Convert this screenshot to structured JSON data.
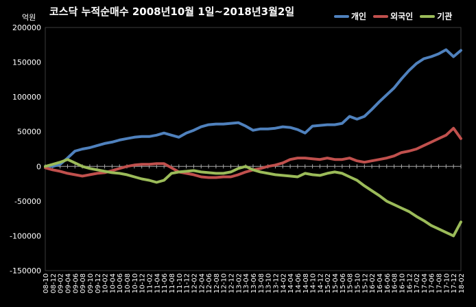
{
  "chart_data": {
    "type": "line",
    "title": "코스닥 누적순매수 2008년10월 1일~2018년3월2일",
    "unit_label": "억원",
    "ylim": [
      -150000,
      200000
    ],
    "yticks": [
      200000,
      150000,
      100000,
      50000,
      0,
      -50000,
      -100000,
      -150000
    ],
    "x_categories": [
      "08-10",
      "08-12",
      "09-02",
      "09-04",
      "09-06",
      "09-08",
      "09-10",
      "09-12",
      "10-02",
      "10-04",
      "10-06",
      "10-08",
      "10-10",
      "10-12",
      "11-02",
      "11-04",
      "11-06",
      "11-08",
      "11-10",
      "11-12",
      "12-02",
      "12-04",
      "12-06",
      "12-08",
      "12-10",
      "12-12",
      "13-02",
      "13-04",
      "13-06",
      "13-08",
      "13-10",
      "13-12",
      "14-02",
      "14-04",
      "14-06",
      "14-08",
      "14-10",
      "14-12",
      "15-02",
      "15-04",
      "15-06",
      "15-08",
      "15-10",
      "15-12",
      "16-02",
      "16-04",
      "16-06",
      "16-08",
      "16-10",
      "16-12",
      "17-02",
      "17-04",
      "17-06",
      "17-08",
      "17-10",
      "17-12",
      "18-02"
    ],
    "legend_position": "top-right",
    "grid": false,
    "series": [
      {
        "name": "개인",
        "color": "#4f81bd",
        "values": [
          0,
          0,
          3000,
          12000,
          22000,
          25000,
          27000,
          30000,
          33000,
          35000,
          38000,
          40000,
          42000,
          43000,
          43000,
          45000,
          48000,
          45000,
          42000,
          48000,
          52000,
          57000,
          60000,
          61000,
          61000,
          62000,
          63000,
          58000,
          52000,
          54000,
          54000,
          55000,
          57000,
          56000,
          53000,
          48000,
          58000,
          59000,
          60000,
          60000,
          62000,
          72000,
          68000,
          72000,
          82000,
          93000,
          103000,
          113000,
          126000,
          138000,
          148000,
          155000,
          158000,
          162000,
          168000,
          158000,
          167000
        ]
      },
      {
        "name": "외국인",
        "color": "#c0504d",
        "values": [
          -2000,
          -5000,
          -7000,
          -10000,
          -12000,
          -14000,
          -12000,
          -10000,
          -9000,
          -6000,
          -3000,
          0,
          2000,
          3000,
          3000,
          4000,
          4000,
          -2000,
          -8000,
          -10000,
          -12000,
          -15000,
          -16000,
          -16000,
          -15000,
          -15000,
          -12000,
          -8000,
          -5000,
          -3000,
          0,
          2000,
          5000,
          10000,
          12000,
          12000,
          11000,
          10000,
          12000,
          10000,
          10000,
          12000,
          8000,
          6000,
          8000,
          10000,
          12000,
          15000,
          20000,
          22000,
          25000,
          30000,
          35000,
          40000,
          45000,
          55000,
          40000
        ]
      },
      {
        "name": "기관",
        "color": "#9bbb59",
        "values": [
          0,
          3000,
          6000,
          10000,
          5000,
          0,
          -3000,
          -5000,
          -7000,
          -9000,
          -10000,
          -12000,
          -15000,
          -18000,
          -20000,
          -23000,
          -20000,
          -10000,
          -8000,
          -7000,
          -6000,
          -8000,
          -9000,
          -10000,
          -10000,
          -8000,
          -3000,
          0,
          -5000,
          -8000,
          -10000,
          -12000,
          -13000,
          -14000,
          -15000,
          -10000,
          -12000,
          -13000,
          -10000,
          -8000,
          -10000,
          -15000,
          -20000,
          -28000,
          -35000,
          -42000,
          -50000,
          -55000,
          -60000,
          -65000,
          -72000,
          -78000,
          -85000,
          -90000,
          -95000,
          -100000,
          -80000
        ]
      }
    ]
  }
}
